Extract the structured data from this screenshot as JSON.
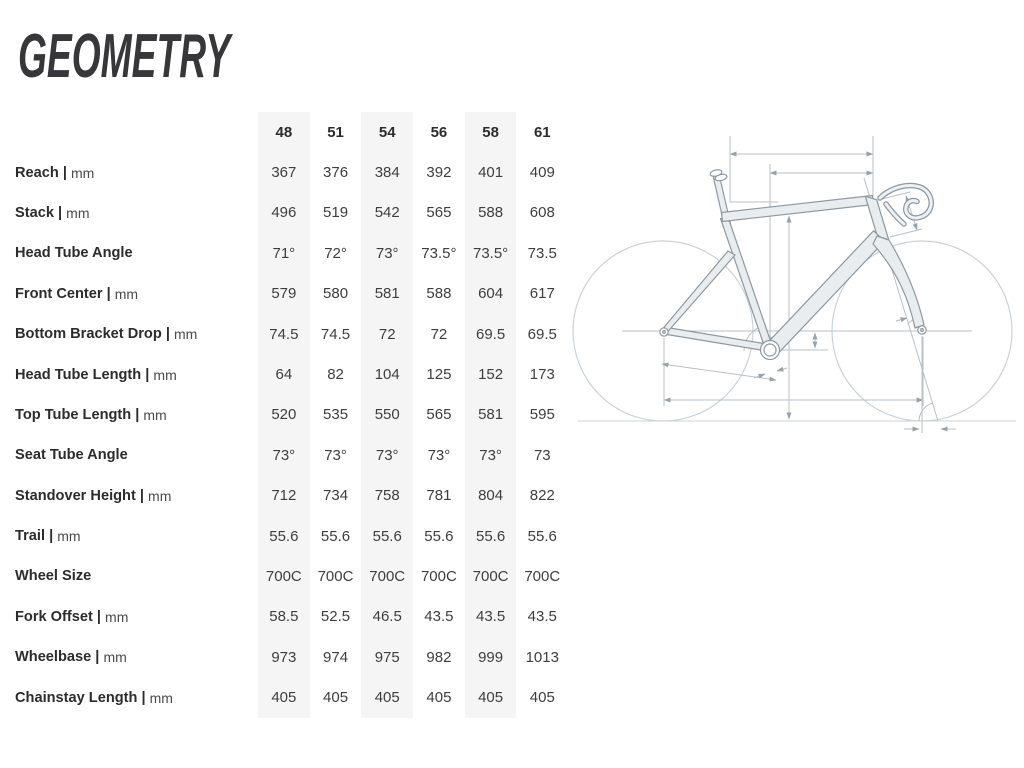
{
  "title": "GEOMETRY",
  "separator": " | ",
  "chart_data": {
    "type": "table",
    "title": "GEOMETRY",
    "columns": [
      "48",
      "51",
      "54",
      "56",
      "58",
      "61"
    ],
    "striped_columns": [
      0,
      2,
      4
    ],
    "rows": [
      {
        "label": "Reach",
        "unit": "mm",
        "values": [
          "367",
          "376",
          "384",
          "392",
          "401",
          "409"
        ]
      },
      {
        "label": "Stack",
        "unit": "mm",
        "values": [
          "496",
          "519",
          "542",
          "565",
          "588",
          "608"
        ]
      },
      {
        "label": "Head Tube Angle",
        "unit": "",
        "values": [
          "71°",
          "72°",
          "73°",
          "73.5°",
          "73.5°",
          "73.5"
        ]
      },
      {
        "label": "Front Center",
        "unit": "mm",
        "values": [
          "579",
          "580",
          "581",
          "588",
          "604",
          "617"
        ]
      },
      {
        "label": "Bottom Bracket Drop",
        "unit": "mm",
        "values": [
          "74.5",
          "74.5",
          "72",
          "72",
          "69.5",
          "69.5"
        ]
      },
      {
        "label": "Head Tube Length",
        "unit": "mm",
        "values": [
          "64",
          "82",
          "104",
          "125",
          "152",
          "173"
        ]
      },
      {
        "label": "Top Tube Length",
        "unit": "mm",
        "values": [
          "520",
          "535",
          "550",
          "565",
          "581",
          "595"
        ]
      },
      {
        "label": "Seat Tube Angle",
        "unit": "",
        "values": [
          "73°",
          "73°",
          "73°",
          "73°",
          "73°",
          "73"
        ]
      },
      {
        "label": "Standover Height",
        "unit": "mm",
        "values": [
          "712",
          "734",
          "758",
          "781",
          "804",
          "822"
        ]
      },
      {
        "label": "Trail",
        "unit": "mm",
        "values": [
          "55.6",
          "55.6",
          "55.6",
          "55.6",
          "55.6",
          "55.6"
        ]
      },
      {
        "label": "Wheel Size",
        "unit": "",
        "values": [
          "700C",
          "700C",
          "700C",
          "700C",
          "700C",
          "700C"
        ]
      },
      {
        "label": "Fork Offset",
        "unit": "mm",
        "values": [
          "58.5",
          "52.5",
          "46.5",
          "43.5",
          "43.5",
          "43.5"
        ]
      },
      {
        "label": "Wheelbase",
        "unit": "mm",
        "values": [
          "973",
          "974",
          "975",
          "982",
          "999",
          "1013"
        ]
      },
      {
        "label": "Chainstay Length",
        "unit": "mm",
        "values": [
          "405",
          "405",
          "405",
          "405",
          "405",
          "405"
        ]
      }
    ]
  },
  "diagram": {
    "name": "bike-frame-geometry-diagram"
  },
  "colors": {
    "column_stripe": "#f5f5f6",
    "heading_text": "#2c2c2e",
    "value_text": "#3e3e40",
    "title_text": "#37373a",
    "frame_fill": "#e9edf0",
    "frame_stroke": "#8f98a0",
    "dimension_line": "#b9c0c6",
    "wheel_line": "#ccd3d8"
  }
}
